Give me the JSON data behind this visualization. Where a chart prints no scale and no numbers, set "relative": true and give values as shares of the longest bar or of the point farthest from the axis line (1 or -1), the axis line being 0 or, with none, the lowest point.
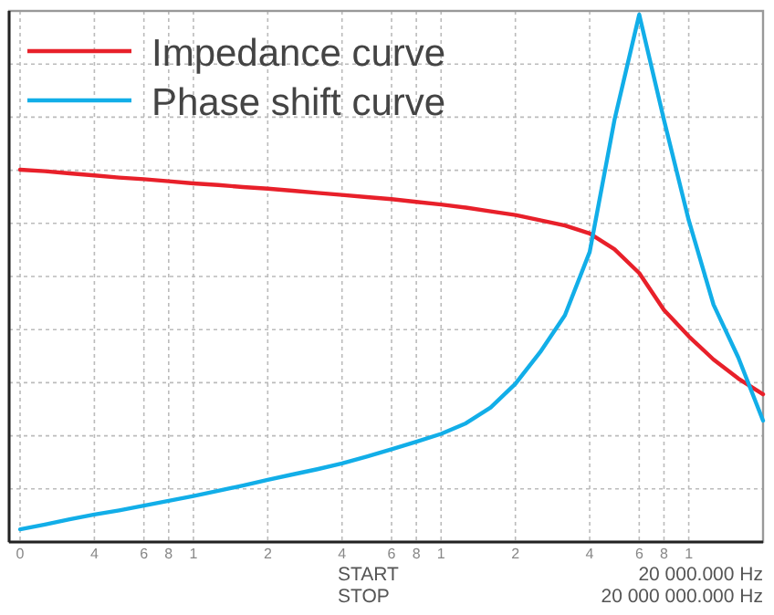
{
  "chart_data": {
    "type": "line",
    "relative": true,
    "grid": true,
    "legend": "top left",
    "marker": "none",
    "line_style": "solid",
    "categories": [
      "0",
      null,
      null,
      "4",
      null,
      "6",
      "8",
      "1",
      null,
      null,
      "2",
      null,
      null,
      "4",
      null,
      "6",
      "8",
      "1",
      null,
      null,
      "2",
      null,
      null,
      "4",
      null,
      "6",
      "8",
      "1",
      null,
      null,
      null
    ],
    "series": [
      {
        "name": "Impedance curve",
        "color": "#e8202a",
        "values": [
          0.706,
          0.703,
          0.699,
          0.695,
          0.691,
          0.688,
          0.684,
          0.68,
          0.677,
          0.673,
          0.67,
          0.666,
          0.662,
          0.658,
          0.654,
          0.65,
          0.645,
          0.64,
          0.634,
          0.627,
          0.62,
          0.61,
          0.6,
          0.585,
          0.555,
          0.51,
          0.44,
          0.39,
          0.346,
          0.31,
          0.28
        ]
      },
      {
        "name": "Phase shift curve",
        "color": "#12aee8",
        "values": [
          0.024,
          0.033,
          0.043,
          0.052,
          0.06,
          0.069,
          0.078,
          0.087,
          0.097,
          0.107,
          0.118,
          0.128,
          0.138,
          0.149,
          0.162,
          0.176,
          0.19,
          0.205,
          0.225,
          0.255,
          0.3,
          0.36,
          0.43,
          0.55,
          0.8,
          1,
          0.8,
          0.61,
          0.45,
          0.35,
          0.23
        ]
      }
    ],
    "annotations": [
      "START",
      "20 000.000 Hz",
      "STOP",
      "20 000 000.000 Hz"
    ]
  }
}
